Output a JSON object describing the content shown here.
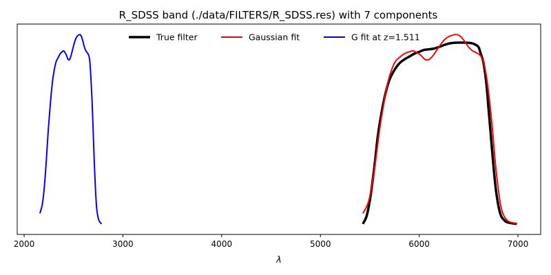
{
  "chart_data": {
    "type": "line",
    "title": "R_SDSS band (./data/FILTERS/R_SDSS.res) with 7 components",
    "xlabel": "λ",
    "ylabel": "",
    "xlim": [
      1930,
      7230
    ],
    "ylim": [
      -0.05,
      1.05
    ],
    "xticks": [
      2000,
      3000,
      4000,
      5000,
      6000,
      7000
    ],
    "xtick_labels": [
      "2000",
      "3000",
      "4000",
      "5000",
      "6000",
      "7000"
    ],
    "y_ticks_shown": false,
    "grid": false,
    "legend": {
      "placement": "top-center",
      "columns": 3
    },
    "series": [
      {
        "name": "True filter",
        "color": "#000000",
        "points": [
          [
            5430,
            0.005
          ],
          [
            5470,
            0.05
          ],
          [
            5510,
            0.16
          ],
          [
            5550,
            0.32
          ],
          [
            5580,
            0.46
          ],
          [
            5620,
            0.59
          ],
          [
            5660,
            0.69
          ],
          [
            5700,
            0.76
          ],
          [
            5750,
            0.81
          ],
          [
            5800,
            0.845
          ],
          [
            5850,
            0.865
          ],
          [
            5900,
            0.88
          ],
          [
            5950,
            0.895
          ],
          [
            6000,
            0.905
          ],
          [
            6050,
            0.915
          ],
          [
            6100,
            0.918
          ],
          [
            6150,
            0.922
          ],
          [
            6200,
            0.93
          ],
          [
            6250,
            0.94
          ],
          [
            6300,
            0.948
          ],
          [
            6350,
            0.952
          ],
          [
            6400,
            0.953
          ],
          [
            6450,
            0.953
          ],
          [
            6500,
            0.952
          ],
          [
            6550,
            0.947
          ],
          [
            6600,
            0.93
          ],
          [
            6620,
            0.9
          ],
          [
            6650,
            0.85
          ],
          [
            6680,
            0.74
          ],
          [
            6700,
            0.62
          ],
          [
            6720,
            0.5
          ],
          [
            6750,
            0.32
          ],
          [
            6780,
            0.17
          ],
          [
            6820,
            0.06
          ],
          [
            6860,
            0.025
          ],
          [
            6900,
            0.012
          ],
          [
            6990,
            0.005
          ]
        ]
      },
      {
        "name": "Gaussian fit",
        "color": "#ff0000",
        "points": [
          [
            5430,
            0.06
          ],
          [
            5480,
            0.11
          ],
          [
            5520,
            0.2
          ],
          [
            5560,
            0.34
          ],
          [
            5600,
            0.5
          ],
          [
            5640,
            0.63
          ],
          [
            5680,
            0.74
          ],
          [
            5720,
            0.81
          ],
          [
            5760,
            0.855
          ],
          [
            5800,
            0.875
          ],
          [
            5850,
            0.895
          ],
          [
            5900,
            0.905
          ],
          [
            5940,
            0.91
          ],
          [
            5980,
            0.9
          ],
          [
            6020,
            0.885
          ],
          [
            6060,
            0.865
          ],
          [
            6100,
            0.865
          ],
          [
            6140,
            0.885
          ],
          [
            6180,
            0.915
          ],
          [
            6220,
            0.945
          ],
          [
            6260,
            0.97
          ],
          [
            6300,
            0.985
          ],
          [
            6340,
            0.992
          ],
          [
            6380,
            0.995
          ],
          [
            6420,
            0.985
          ],
          [
            6460,
            0.96
          ],
          [
            6500,
            0.93
          ],
          [
            6540,
            0.91
          ],
          [
            6580,
            0.9
          ],
          [
            6620,
            0.885
          ],
          [
            6650,
            0.855
          ],
          [
            6680,
            0.78
          ],
          [
            6710,
            0.66
          ],
          [
            6740,
            0.51
          ],
          [
            6770,
            0.33
          ],
          [
            6800,
            0.19
          ],
          [
            6830,
            0.09
          ],
          [
            6860,
            0.045
          ],
          [
            6900,
            0.02
          ],
          [
            6950,
            0.01
          ],
          [
            6990,
            0.005
          ]
        ]
      },
      {
        "name": "G fit at z=1.511",
        "color": "#0000ff",
        "points": [
          [
            2160,
            0.06
          ],
          [
            2185,
            0.11
          ],
          [
            2205,
            0.2
          ],
          [
            2225,
            0.34
          ],
          [
            2245,
            0.5
          ],
          [
            2265,
            0.63
          ],
          [
            2285,
            0.74
          ],
          [
            2305,
            0.81
          ],
          [
            2325,
            0.855
          ],
          [
            2345,
            0.875
          ],
          [
            2365,
            0.895
          ],
          [
            2385,
            0.905
          ],
          [
            2400,
            0.91
          ],
          [
            2415,
            0.9
          ],
          [
            2430,
            0.885
          ],
          [
            2445,
            0.865
          ],
          [
            2460,
            0.865
          ],
          [
            2475,
            0.885
          ],
          [
            2490,
            0.915
          ],
          [
            2505,
            0.945
          ],
          [
            2520,
            0.97
          ],
          [
            2535,
            0.985
          ],
          [
            2550,
            0.992
          ],
          [
            2565,
            0.995
          ],
          [
            2580,
            0.985
          ],
          [
            2595,
            0.96
          ],
          [
            2610,
            0.93
          ],
          [
            2625,
            0.91
          ],
          [
            2640,
            0.9
          ],
          [
            2655,
            0.885
          ],
          [
            2665,
            0.855
          ],
          [
            2675,
            0.78
          ],
          [
            2687,
            0.66
          ],
          [
            2698,
            0.51
          ],
          [
            2710,
            0.33
          ],
          [
            2722,
            0.19
          ],
          [
            2734,
            0.09
          ],
          [
            2746,
            0.045
          ],
          [
            2760,
            0.02
          ],
          [
            2775,
            0.01
          ],
          [
            2785,
            0.005
          ]
        ]
      }
    ]
  }
}
